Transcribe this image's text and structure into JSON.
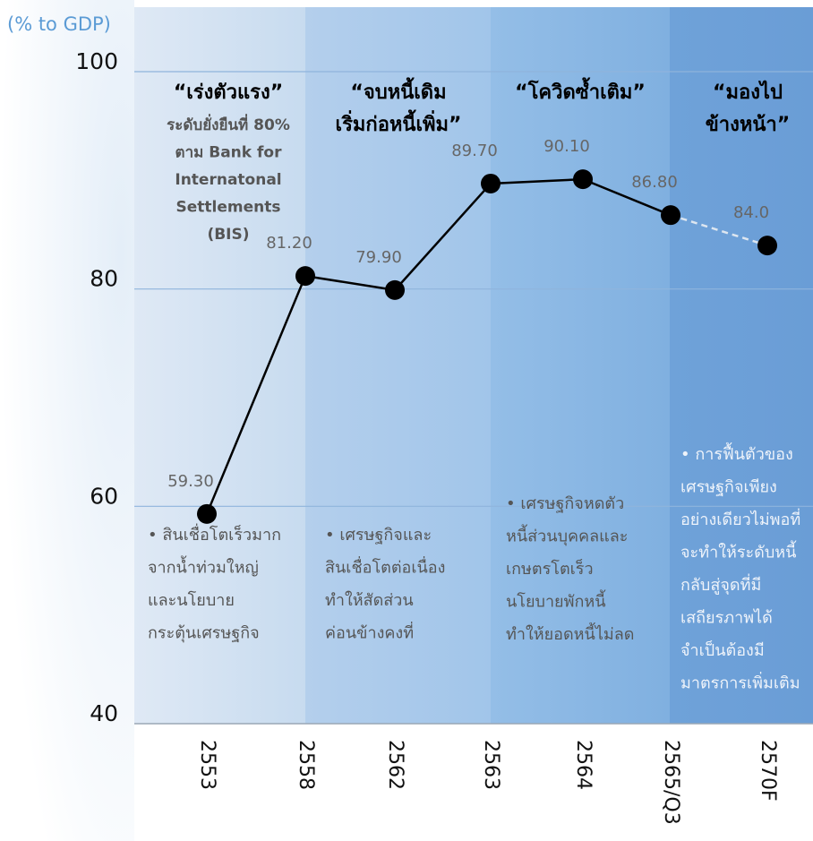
{
  "chart_data": {
    "type": "line",
    "y_axis_label": "(% to GDP)",
    "categories": [
      "2553",
      "2558",
      "2562",
      "2563",
      "2564",
      "2565/Q3",
      "2570F"
    ],
    "values": [
      59.3,
      81.2,
      79.9,
      89.7,
      90.1,
      86.8,
      84.0
    ],
    "value_labels": [
      "59.30",
      "81.20",
      "79.90",
      "89.70",
      "90.10",
      "86.80",
      "84.0"
    ],
    "color": "#000000",
    "dashed_last_segment": true,
    "dashed_color": "#dde6f0",
    "ylim": [
      40,
      100
    ],
    "yticks": [
      40,
      60,
      80,
      100
    ],
    "grid": true,
    "panels": [
      {
        "title": [
          "“เร่งตัวแรง”"
        ],
        "subtitle": [
          "ระดับยั่งยืนที่ 80%",
          "ตาม Bank for",
          "Internatonal",
          "Settlements",
          "(BIS)"
        ],
        "notes": [
          "• สินเชื่อโตเร็วมาก",
          "จากน้ำท่วมใหญ่",
          "และนโยบาย",
          "กระตุ้นเศรษฐกิจ"
        ]
      },
      {
        "title": [
          "“จบหนี้เดิม",
          "เริ่มก่อหนี้เพิ่ม”"
        ],
        "notes": [
          "• เศรษฐกิจและ",
          "สินเชื่อโตต่อเนื่อง",
          "ทำให้สัดส่วน",
          "ค่อนข้างคงที่"
        ]
      },
      {
        "title": [
          "“โควิดซ้ำเติม”"
        ],
        "notes": [
          "• เศรษฐกิจหดตัว",
          "หนี้ส่วนบุคคลและ",
          "เกษตรโตเร็ว",
          "นโยบายพักหนี้",
          "ทำให้ยอดหนี้ไม่ลด"
        ]
      },
      {
        "title": [
          "“มองไป",
          "ข้างหน้า”"
        ],
        "notes": [
          "• การฟื้นตัวของ",
          "เศรษฐกิจเพียง",
          "อย่างเดียวไม่พอที่",
          "จะทำให้ระดับหนี้",
          "กลับสู่จุดที่มี",
          "เสถียรภาพได้",
          "จำเป็นต้องมี",
          "มาตรการเพิ่มเติม"
        ]
      }
    ]
  }
}
